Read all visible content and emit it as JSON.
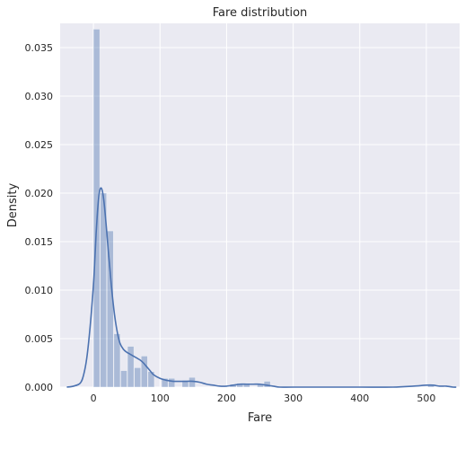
{
  "chart_data": {
    "type": "bar",
    "title": "Fare distribution",
    "xlabel": "Fare",
    "ylabel": "Density",
    "xlim": [
      -50,
      550
    ],
    "ylim": [
      0,
      0.0375
    ],
    "grid": true,
    "x_ticks": [
      0,
      100,
      200,
      300,
      400,
      500
    ],
    "y_ticks": [
      0.0,
      0.005,
      0.01,
      0.015,
      0.02,
      0.025,
      0.03,
      0.035
    ],
    "y_tick_labels": [
      "0.000",
      "0.005",
      "0.010",
      "0.015",
      "0.020",
      "0.025",
      "0.030",
      "0.035"
    ],
    "x_tick_labels": [
      "0",
      "100",
      "200",
      "300",
      "400",
      "500"
    ],
    "histogram": {
      "bin_width": 10.25,
      "bins": [
        {
          "x0": 0.0,
          "density": 0.0369
        },
        {
          "x0": 10.25,
          "density": 0.02
        },
        {
          "x0": 20.5,
          "density": 0.0161
        },
        {
          "x0": 30.75,
          "density": 0.0055
        },
        {
          "x0": 41.0,
          "density": 0.0017
        },
        {
          "x0": 51.25,
          "density": 0.0042
        },
        {
          "x0": 61.5,
          "density": 0.002
        },
        {
          "x0": 71.75,
          "density": 0.0032
        },
        {
          "x0": 82.0,
          "density": 0.0016
        },
        {
          "x0": 92.25,
          "density": 0.0
        },
        {
          "x0": 102.5,
          "density": 0.0009
        },
        {
          "x0": 112.75,
          "density": 0.0009
        },
        {
          "x0": 123.0,
          "density": 0.0
        },
        {
          "x0": 133.25,
          "density": 0.0007
        },
        {
          "x0": 143.5,
          "density": 0.001
        },
        {
          "x0": 153.75,
          "density": 0.0
        },
        {
          "x0": 164.0,
          "density": 0.0
        },
        {
          "x0": 174.25,
          "density": 0.0
        },
        {
          "x0": 184.5,
          "density": 0.0
        },
        {
          "x0": 194.75,
          "density": 0.0
        },
        {
          "x0": 205.0,
          "density": 0.0003
        },
        {
          "x0": 215.25,
          "density": 0.0004
        },
        {
          "x0": 225.5,
          "density": 0.0004
        },
        {
          "x0": 235.75,
          "density": 0.0
        },
        {
          "x0": 246.0,
          "density": 0.0003
        },
        {
          "x0": 256.25,
          "density": 0.0006
        },
        {
          "x0": 502.25,
          "density": 0.0003
        }
      ]
    },
    "kde": {
      "x": [
        -40,
        -30,
        -20,
        -15,
        -10,
        -5,
        0,
        2,
        4,
        6,
        8,
        10,
        12,
        14,
        16,
        18,
        20,
        22,
        25,
        28,
        32,
        36,
        40,
        45,
        50,
        55,
        60,
        65,
        70,
        75,
        80,
        85,
        90,
        100,
        110,
        120,
        130,
        140,
        150,
        160,
        170,
        180,
        190,
        200,
        210,
        220,
        230,
        240,
        250,
        260,
        270,
        280,
        300,
        350,
        400,
        450,
        480,
        500,
        510,
        520,
        530,
        540,
        545
      ],
      "y": [
        0.0,
        0.0001,
        0.0004,
        0.0012,
        0.003,
        0.0062,
        0.0105,
        0.013,
        0.0158,
        0.018,
        0.0196,
        0.0204,
        0.0205,
        0.02,
        0.019,
        0.0176,
        0.016,
        0.0143,
        0.012,
        0.0097,
        0.0073,
        0.0056,
        0.0045,
        0.0039,
        0.0036,
        0.0034,
        0.0032,
        0.003,
        0.0028,
        0.0025,
        0.0021,
        0.0017,
        0.0013,
        0.0009,
        0.0007,
        0.0006,
        0.0006,
        0.0006,
        0.0006,
        0.0005,
        0.0003,
        0.0002,
        0.0001,
        0.0001,
        0.0002,
        0.0003,
        0.0003,
        0.0003,
        0.0003,
        0.0002,
        0.0001,
        0.0,
        0.0,
        0.0,
        0.0,
        0.0,
        0.0001,
        0.0002,
        0.0002,
        0.0001,
        0.0001,
        0.0,
        0.0
      ]
    },
    "colors": {
      "background": "#eaeaf2",
      "grid": "#ffffff",
      "bar": "#4c72b0",
      "bar_opacity": "0.4",
      "line": "#4c72b0",
      "text": "#262626"
    }
  }
}
